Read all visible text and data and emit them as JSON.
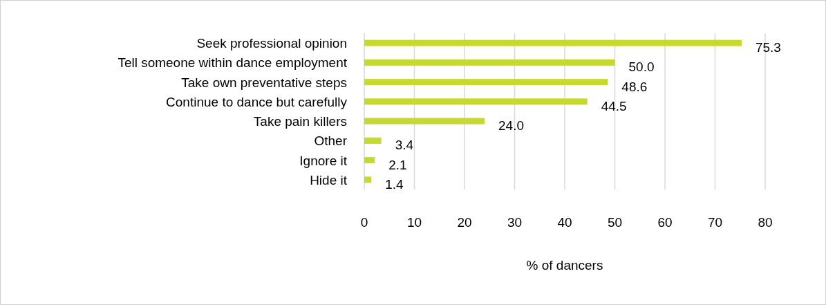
{
  "chart_data": {
    "type": "bar",
    "orientation": "horizontal",
    "categories": [
      "Seek professional opinion",
      "Tell someone within dance employment",
      "Take own preventative steps",
      "Continue to dance but carefully",
      "Take pain killers",
      "Other",
      "Ignore it",
      "Hide it"
    ],
    "values": [
      75.3,
      50.0,
      48.6,
      44.5,
      24.0,
      3.4,
      2.1,
      1.4
    ],
    "value_labels": [
      "75.3",
      "50.0",
      "48.6",
      "44.5",
      "24.0",
      "3.4",
      "2.1",
      "1.4"
    ],
    "color": "#c6da2e",
    "xlim": [
      0,
      80
    ],
    "xticks": [
      0,
      10,
      20,
      30,
      40,
      50,
      60,
      70,
      80
    ],
    "grid": "x",
    "xlabel": "% of dancers"
  }
}
